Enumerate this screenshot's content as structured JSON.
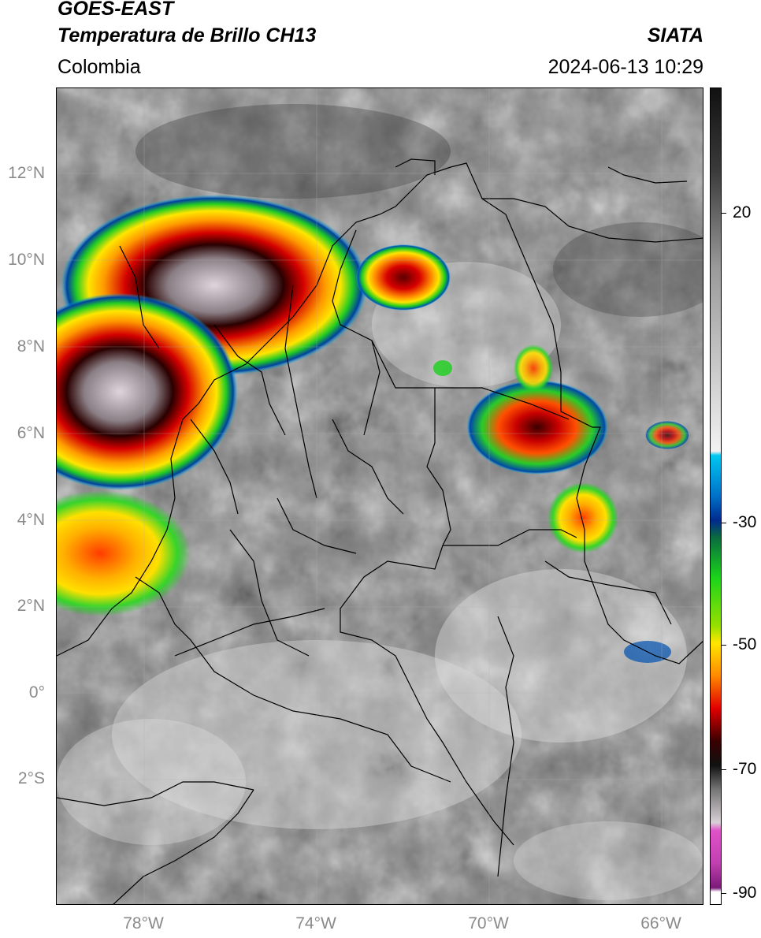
{
  "header": {
    "satellite": "GOES-EAST",
    "product": "Temperatura de Brillo CH13",
    "region": "Colombia",
    "agency": "SIATA",
    "datetime": "2024-06-13 10:29"
  },
  "map": {
    "lat_labels": [
      "12°N",
      "10°N",
      "8°N",
      "6°N",
      "4°N",
      "2°N",
      "0°",
      "2°S"
    ],
    "lon_labels": [
      "78°W",
      "74°W",
      "70°W",
      "66°W"
    ],
    "extent": {
      "lon_min": -80,
      "lon_max": -65,
      "lat_min": -5,
      "lat_max": 14
    }
  },
  "colorbar": {
    "labels": [
      "20",
      "-30",
      "-50",
      "-70",
      "-90"
    ],
    "range": [
      -92,
      35
    ],
    "colors": {
      "warm_gray_top": "#111111",
      "gray_mid": "#9a9a9a",
      "white": "#f2f2f2",
      "cyan": "#00c8f0",
      "blue": "#002a8c",
      "green": "#1bd41b",
      "yellow": "#ffe600",
      "orange": "#ff8a00",
      "red": "#e00000",
      "dark_red": "#3a0000",
      "magenta": "#e052c8",
      "purple": "#7a1a78"
    }
  }
}
